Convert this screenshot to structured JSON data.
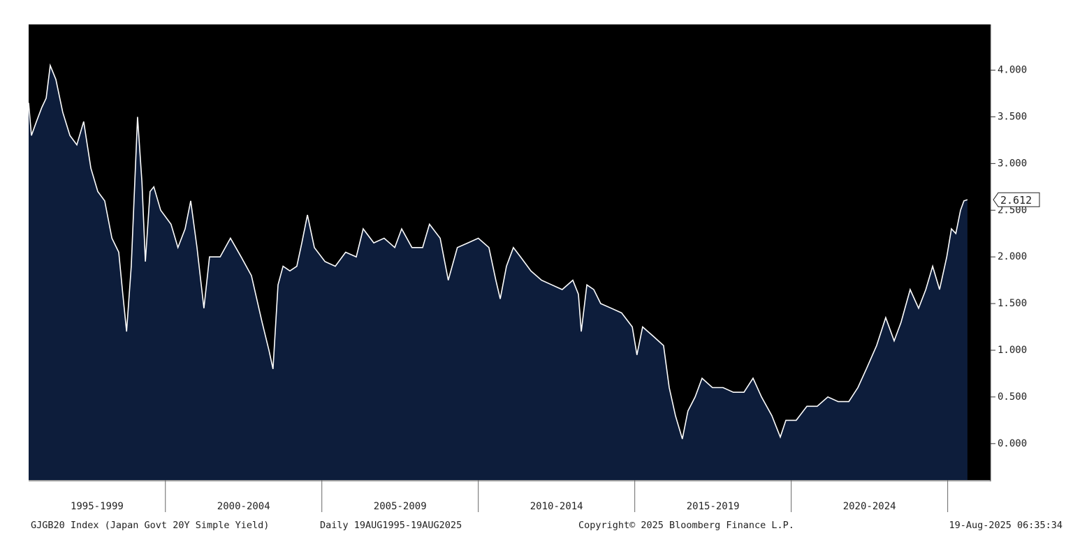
{
  "chart_data": {
    "type": "area",
    "footer": {
      "index": "GJGB20 Index (Japan Govt 20Y Simple Yield)",
      "range": "Daily 19AUG1995-19AUG2025",
      "copyright": "Copyright© 2025 Bloomberg Finance L.P.",
      "timestamp": "19-Aug-2025 06:35:34"
    },
    "categories": [
      "1995-1999",
      "2000-2004",
      "2005-2009",
      "2010-2014",
      "2015-2019",
      "2020-2024"
    ],
    "xlim": [
      1995.63,
      2026.37
    ],
    "xticks": [
      2000,
      2005,
      2010,
      2015,
      2020,
      2025
    ],
    "ylim": [
      -0.39,
      4.49
    ],
    "yticks": [
      {
        "value": 0,
        "label": "0.000"
      },
      {
        "value": 0.5,
        "label": "0.500"
      },
      {
        "value": 1,
        "label": "1.000"
      },
      {
        "value": 1.5,
        "label": "1.500"
      },
      {
        "value": 2,
        "label": "2.000"
      },
      {
        "value": 2.5,
        "label": "2.500"
      },
      {
        "value": 3,
        "label": "3.000"
      },
      {
        "value": 3.5,
        "label": "3.500"
      },
      {
        "value": 4,
        "label": "4.000"
      }
    ],
    "background": "#000000",
    "series": [
      {
        "color": "#ffffff",
        "fill": "#0d1d3b",
        "x": [
          1995.63,
          1995.72,
          1995.88,
          1996.05,
          1996.19,
          1996.32,
          1996.5,
          1996.72,
          1996.95,
          1997.17,
          1997.39,
          1997.62,
          1997.84,
          1998.06,
          1998.29,
          1998.51,
          1998.64,
          1998.76,
          1998.91,
          1999.11,
          1999.25,
          1999.36,
          1999.51,
          1999.63,
          1999.85,
          2000.18,
          2000.4,
          2000.63,
          2000.81,
          2001.01,
          2001.23,
          2001.41,
          2001.75,
          2002.08,
          2002.42,
          2002.75,
          2003.09,
          2003.31,
          2003.44,
          2003.6,
          2003.76,
          2003.98,
          2004.2,
          2004.36,
          2004.54,
          2004.76,
          2005.1,
          2005.43,
          2005.76,
          2006.1,
          2006.32,
          2006.66,
          2006.99,
          2007.33,
          2007.55,
          2007.88,
          2008.22,
          2008.44,
          2008.78,
          2009.04,
          2009.33,
          2009.67,
          2010.0,
          2010.34,
          2010.56,
          2010.7,
          2010.9,
          2011.12,
          2011.35,
          2011.68,
          2012.02,
          2012.35,
          2012.68,
          2013.02,
          2013.2,
          2013.29,
          2013.47,
          2013.69,
          2013.91,
          2014.25,
          2014.58,
          2014.92,
          2015.07,
          2015.25,
          2015.59,
          2015.92,
          2016.1,
          2016.3,
          2016.52,
          2016.7,
          2016.93,
          2017.15,
          2017.48,
          2017.82,
          2018.15,
          2018.49,
          2018.78,
          2019.05,
          2019.38,
          2019.65,
          2019.83,
          2020.16,
          2020.5,
          2020.83,
          2021.17,
          2021.5,
          2021.84,
          2022.13,
          2022.4,
          2022.73,
          2023.02,
          2023.29,
          2023.51,
          2023.8,
          2024.07,
          2024.3,
          2024.52,
          2024.74,
          2024.97,
          2025.12,
          2025.26,
          2025.41,
          2025.52,
          2025.63
        ],
        "values": [
          3.65,
          3.3,
          3.45,
          3.6,
          3.7,
          4.05,
          3.9,
          3.55,
          3.3,
          3.2,
          3.45,
          2.95,
          2.7,
          2.6,
          2.2,
          2.05,
          1.6,
          1.2,
          1.9,
          3.5,
          2.8,
          1.95,
          2.7,
          2.75,
          2.5,
          2.35,
          2.1,
          2.3,
          2.6,
          2.1,
          1.45,
          2.0,
          2.0,
          2.2,
          2.0,
          1.8,
          1.3,
          1.0,
          0.8,
          1.7,
          1.9,
          1.85,
          1.9,
          2.15,
          2.45,
          2.1,
          1.95,
          1.9,
          2.05,
          2.0,
          2.3,
          2.15,
          2.2,
          2.1,
          2.3,
          2.1,
          2.1,
          2.35,
          2.2,
          1.75,
          2.1,
          2.15,
          2.2,
          2.1,
          1.75,
          1.55,
          1.9,
          2.1,
          2.0,
          1.85,
          1.75,
          1.7,
          1.65,
          1.75,
          1.6,
          1.2,
          1.7,
          1.65,
          1.5,
          1.45,
          1.4,
          1.25,
          0.95,
          1.25,
          1.15,
          1.05,
          0.6,
          0.3,
          0.05,
          0.35,
          0.5,
          0.7,
          0.6,
          0.6,
          0.55,
          0.55,
          0.7,
          0.5,
          0.3,
          0.07,
          0.25,
          0.25,
          0.4,
          0.4,
          0.5,
          0.45,
          0.45,
          0.6,
          0.8,
          1.05,
          1.35,
          1.1,
          1.3,
          1.65,
          1.45,
          1.65,
          1.9,
          1.65,
          2.0,
          2.3,
          2.25,
          2.5,
          2.6,
          2.612
        ]
      }
    ]
  }
}
